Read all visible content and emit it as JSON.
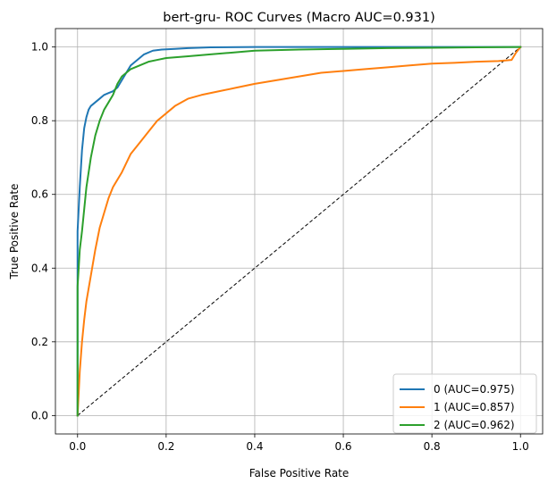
{
  "chart_data": {
    "type": "line",
    "title": "bert-gru- ROC Curves (Macro AUC=0.931)",
    "xlabel": "False Positive Rate",
    "ylabel": "True Positive Rate",
    "xlim": [
      -0.05,
      1.05
    ],
    "ylim": [
      -0.05,
      1.05
    ],
    "xticks": [
      0.0,
      0.2,
      0.4,
      0.6,
      0.8,
      1.0
    ],
    "yticks": [
      0.0,
      0.2,
      0.4,
      0.6,
      0.8,
      1.0
    ],
    "xtick_labels": [
      "0.0",
      "0.2",
      "0.4",
      "0.6",
      "0.8",
      "1.0"
    ],
    "ytick_labels": [
      "0.0",
      "0.2",
      "0.4",
      "0.6",
      "0.8",
      "1.0"
    ],
    "grid": true,
    "legend_position": "lower right",
    "series": [
      {
        "name": "0 (AUC=0.975)",
        "color": "#1f77b4",
        "x": [
          0.0,
          0.0,
          0.005,
          0.01,
          0.015,
          0.02,
          0.025,
          0.03,
          0.04,
          0.05,
          0.06,
          0.07,
          0.08,
          0.09,
          0.1,
          0.11,
          0.12,
          0.13,
          0.14,
          0.15,
          0.17,
          0.19,
          0.22,
          0.25,
          0.3,
          0.4,
          0.5,
          0.6,
          0.7,
          0.8,
          0.9,
          1.0
        ],
        "y": [
          0.0,
          0.5,
          0.62,
          0.72,
          0.78,
          0.81,
          0.83,
          0.84,
          0.85,
          0.86,
          0.87,
          0.875,
          0.88,
          0.89,
          0.91,
          0.93,
          0.95,
          0.96,
          0.97,
          0.98,
          0.99,
          0.993,
          0.995,
          0.997,
          0.999,
          1.0,
          1.0,
          1.0,
          1.0,
          1.0,
          1.0,
          1.0
        ]
      },
      {
        "name": "1 (AUC=0.857)",
        "color": "#ff7f0e",
        "x": [
          0.0,
          0.005,
          0.01,
          0.015,
          0.02,
          0.03,
          0.04,
          0.05,
          0.06,
          0.07,
          0.08,
          0.1,
          0.12,
          0.14,
          0.16,
          0.18,
          0.2,
          0.22,
          0.25,
          0.28,
          0.32,
          0.36,
          0.4,
          0.45,
          0.5,
          0.55,
          0.6,
          0.65,
          0.7,
          0.75,
          0.8,
          0.85,
          0.9,
          0.95,
          0.98,
          0.99,
          1.0
        ],
        "y": [
          0.0,
          0.12,
          0.2,
          0.26,
          0.31,
          0.38,
          0.45,
          0.51,
          0.55,
          0.59,
          0.62,
          0.66,
          0.71,
          0.74,
          0.77,
          0.8,
          0.82,
          0.84,
          0.86,
          0.87,
          0.88,
          0.89,
          0.9,
          0.91,
          0.92,
          0.93,
          0.935,
          0.94,
          0.945,
          0.95,
          0.955,
          0.957,
          0.96,
          0.962,
          0.965,
          0.985,
          1.0
        ]
      },
      {
        "name": "2 (AUC=0.962)",
        "color": "#2ca02c",
        "x": [
          0.0,
          0.0,
          0.005,
          0.01,
          0.015,
          0.02,
          0.03,
          0.04,
          0.05,
          0.06,
          0.07,
          0.08,
          0.09,
          0.1,
          0.12,
          0.14,
          0.16,
          0.18,
          0.2,
          0.25,
          0.3,
          0.35,
          0.4,
          0.5,
          0.6,
          0.7,
          0.8,
          0.9,
          1.0
        ],
        "y": [
          0.0,
          0.35,
          0.45,
          0.5,
          0.56,
          0.62,
          0.7,
          0.76,
          0.8,
          0.83,
          0.85,
          0.87,
          0.9,
          0.92,
          0.94,
          0.95,
          0.96,
          0.965,
          0.97,
          0.975,
          0.98,
          0.985,
          0.99,
          0.993,
          0.995,
          0.997,
          0.998,
          0.999,
          1.0
        ]
      }
    ],
    "reference_line": {
      "style": "dashed",
      "color": "#000000",
      "x": [
        0.0,
        1.0
      ],
      "y": [
        0.0,
        1.0
      ]
    }
  }
}
